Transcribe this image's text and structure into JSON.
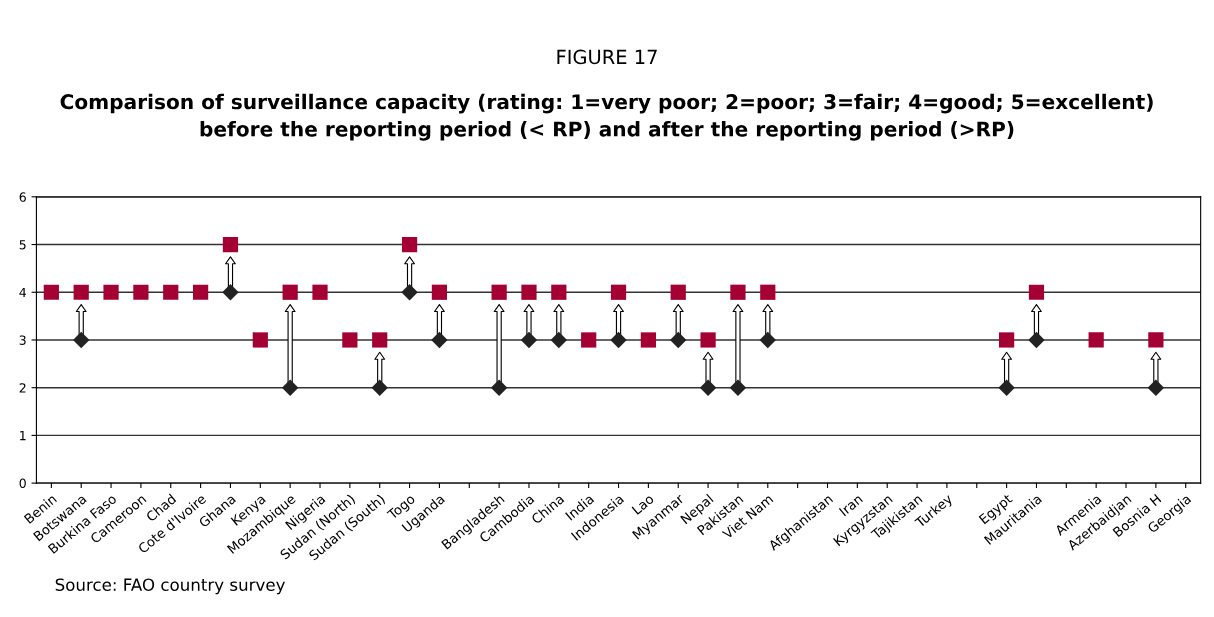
{
  "chart_data": {
    "type": "scatter",
    "title": "FIGURE 17",
    "subtitle": "Comparison of surveillance capacity (rating: 1=very poor; 2=poor; 3=fair; 4=good; 5=excellent)\nbefore the reporting period (< RP) and after the reporting period (>RP)",
    "categories": [
      "Benin",
      "Botswana",
      "Burkina Faso",
      "Cameroon",
      "Chad",
      "Cote d'Ivoire",
      "Ghana",
      "Kenya",
      "Mozambique",
      "Nigeria",
      "Sudan (North)",
      "Sudan (South)",
      "Togo",
      "Uganda",
      null,
      "Bangladesh",
      "Cambodia",
      "China",
      "India",
      "Indonesia",
      "Lao",
      "Myanmar",
      "Nepal",
      "Pakistan",
      "Viet Nam",
      null,
      "Afghanistan",
      "Iran",
      "Kyrgyzstan",
      "Tajikistan",
      "Turkey",
      null,
      "Egypt",
      "Mauritania",
      null,
      "Armenia",
      "Azerbaidjan",
      "Bosnia H",
      "Georgia"
    ],
    "series": [
      {
        "color": "#222222",
        "marker": "diamond",
        "values": [
          null,
          3,
          null,
          null,
          null,
          null,
          4,
          null,
          2,
          null,
          null,
          2,
          4,
          3,
          null,
          2,
          3,
          3,
          null,
          3,
          null,
          3,
          2,
          2,
          3,
          null,
          null,
          null,
          null,
          null,
          null,
          null,
          2,
          3,
          null,
          null,
          null,
          2,
          null
        ]
      },
      {
        "color": "#a50034",
        "marker": "square",
        "values": [
          4,
          4,
          4,
          4,
          4,
          4,
          5,
          3,
          4,
          4,
          3,
          3,
          5,
          4,
          null,
          4,
          4,
          4,
          3,
          4,
          3,
          4,
          3,
          4,
          4,
          null,
          null,
          null,
          null,
          null,
          null,
          null,
          3,
          4,
          null,
          3,
          null,
          3,
          null
        ]
      }
    ],
    "ylim": [
      0,
      6
    ],
    "yticks": [
      0,
      1,
      2,
      3,
      4,
      5,
      6
    ],
    "grid": "y",
    "annotations": [
      "Source: FAO country survey"
    ]
  }
}
